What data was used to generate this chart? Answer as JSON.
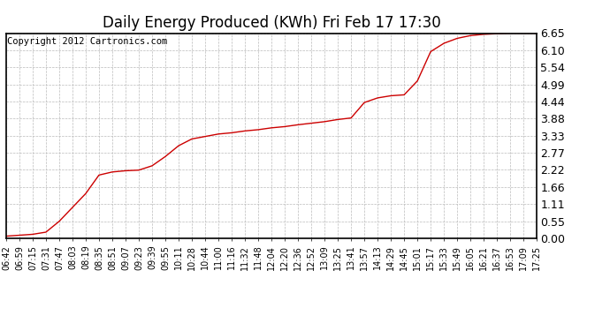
{
  "title": "Daily Energy Produced (KWh) Fri Feb 17 17:30",
  "copyright_text": "Copyright 2012 Cartronics.com",
  "line_color": "#cc0000",
  "background_color": "#ffffff",
  "plot_bg_color": "#ffffff",
  "grid_color": "#bbbbbb",
  "yticks": [
    0.0,
    0.55,
    1.11,
    1.66,
    2.22,
    2.77,
    3.33,
    3.88,
    4.44,
    4.99,
    5.54,
    6.1,
    6.65
  ],
  "ylim": [
    0.0,
    6.65
  ],
  "x_labels": [
    "06:42",
    "06:59",
    "07:15",
    "07:31",
    "07:47",
    "08:03",
    "08:19",
    "08:35",
    "08:51",
    "09:07",
    "09:23",
    "09:39",
    "09:55",
    "10:11",
    "10:28",
    "10:44",
    "11:00",
    "11:16",
    "11:32",
    "11:48",
    "12:04",
    "12:20",
    "12:36",
    "12:52",
    "13:09",
    "13:25",
    "13:41",
    "13:57",
    "14:13",
    "14:29",
    "14:45",
    "15:01",
    "15:17",
    "15:33",
    "15:49",
    "16:05",
    "16:21",
    "16:37",
    "16:53",
    "17:09",
    "17:25"
  ],
  "data_values": [
    0.07,
    0.1,
    0.13,
    0.2,
    0.55,
    1.0,
    1.45,
    2.05,
    2.15,
    2.19,
    2.21,
    2.35,
    2.65,
    3.0,
    3.22,
    3.3,
    3.38,
    3.42,
    3.48,
    3.52,
    3.58,
    3.62,
    3.68,
    3.73,
    3.78,
    3.85,
    3.9,
    4.4,
    4.55,
    4.62,
    4.65,
    5.1,
    6.05,
    6.32,
    6.48,
    6.57,
    6.61,
    6.63,
    6.65,
    6.65,
    6.65
  ],
  "title_fontsize": 12,
  "tick_fontsize": 7,
  "ytick_fontsize": 9,
  "copyright_fontsize": 7.5
}
